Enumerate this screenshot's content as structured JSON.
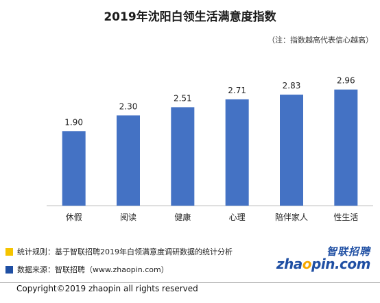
{
  "title": "2019年沈阳白领生活满意度指数",
  "note": "（注：指数越高代表信心越高）",
  "chart_data": {
    "type": "bar",
    "categories": [
      "休假",
      "阅读",
      "健康",
      "心理",
      "陪伴家人",
      "性生活"
    ],
    "values": [
      1.9,
      2.3,
      2.51,
      2.71,
      2.83,
      2.96
    ],
    "value_labels": [
      "1.90",
      "2.30",
      "2.51",
      "2.71",
      "2.83",
      "2.96"
    ],
    "ylim": [
      0,
      3.6
    ],
    "bar_color": "#4472c4",
    "grid": false
  },
  "footer": {
    "rule_text": "统计规则：基于智联招聘2019年白领满意度调研数据的统计分析",
    "source_text": "数据来源：智联招聘（www.zhaopin.com）",
    "rule_color": "#f5c400",
    "source_color": "#1f4fa3"
  },
  "logo": {
    "cn": "智联招聘",
    "en_prefix": "zha",
    "en_o": "o",
    "en_suffix": "pin.com"
  },
  "copyright": "Copyright©2019 zhaopin all rights reserved"
}
